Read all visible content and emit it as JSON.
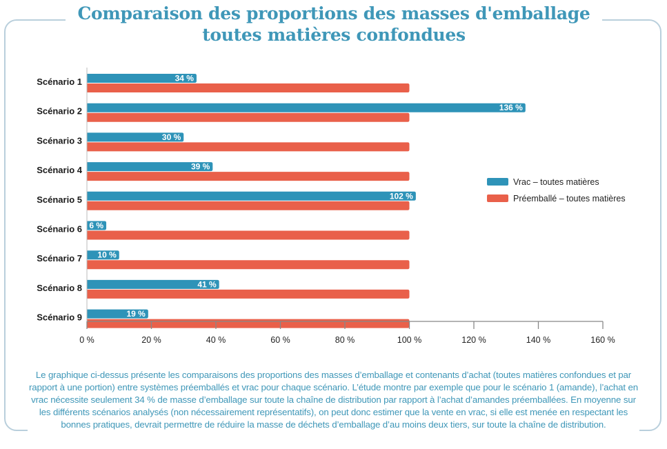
{
  "title": "Comparaison des proportions des masses d'emballage toutes matières confondues",
  "caption": "Le graphique ci-dessus présente les comparaisons des proportions des masses d’emballage et contenants d’achat (toutes matières confondues et par rapport à une portion) entre systèmes préemballés et vrac pour chaque scénario. L’étude montre par exemple que pour le scénario 1 (amande), l’achat en vrac nécessite seulement 34 % de masse d’emballage sur toute la chaîne de distribution par rapport à l’achat d’amandes préemballées. En moyenne sur les différents scénarios analysés (non nécessairement représentatifs), on peut donc estimer que la vente en vrac, si elle est menée en respectant les bonnes pratiques, devrait permettre de réduire la masse de déchets d’emballage d’au moins deux tiers, sur toute la chaîne de distribution.",
  "colors": {
    "vrac": "#2e93b8",
    "preemballe": "#e9604a",
    "title": "#3f97b8",
    "frame": "#b9cfdc"
  },
  "chart_data": {
    "type": "bar",
    "orientation": "horizontal",
    "categories": [
      "Scénario 1",
      "Scénario 2",
      "Scénario 3",
      "Scénario 4",
      "Scénario 5",
      "Scénario 6",
      "Scénario 7",
      "Scénario 8",
      "Scénario 9"
    ],
    "series": [
      {
        "name": "Vrac – toutes matières",
        "values": [
          34,
          136,
          30,
          39,
          102,
          6,
          10,
          41,
          19
        ],
        "labels": [
          "34 %",
          "136 %",
          "30 %",
          "39 %",
          "102 %",
          "6 %",
          "10 %",
          "41 %",
          "19 %"
        ]
      },
      {
        "name": "Préemballé – toutes matières",
        "values": [
          100,
          100,
          100,
          100,
          100,
          100,
          100,
          100,
          100
        ]
      }
    ],
    "xlim": [
      0,
      160
    ],
    "xticks": [
      0,
      20,
      40,
      60,
      80,
      100,
      120,
      140,
      160
    ],
    "xtick_labels": [
      "0 %",
      "20 %",
      "40 %",
      "60 %",
      "80 %",
      "100 %",
      "120 %",
      "140 %",
      "160 %"
    ],
    "grid": false,
    "legend_position": "right"
  }
}
